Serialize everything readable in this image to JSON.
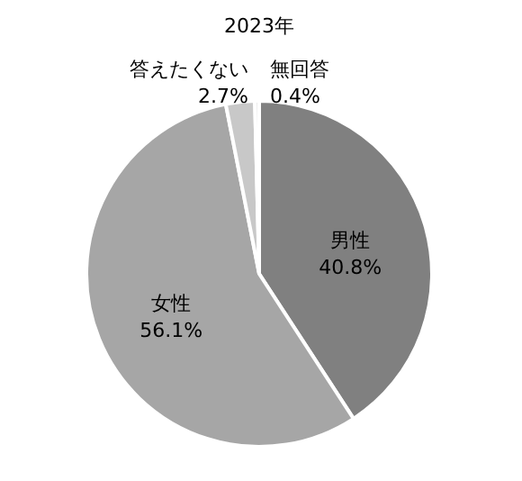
{
  "chart_data": {
    "type": "pie",
    "title": "2023年",
    "categories": [
      "男性",
      "女性",
      "答えたくない",
      "無回答"
    ],
    "values": [
      40.8,
      56.1,
      2.7,
      0.4
    ],
    "value_labels": [
      "40.8%",
      "56.1%",
      "2.7%",
      "0.4%"
    ],
    "colors": [
      "#808080",
      "#a6a6a6",
      "#c8c8c8",
      "#e6e6e6"
    ]
  }
}
